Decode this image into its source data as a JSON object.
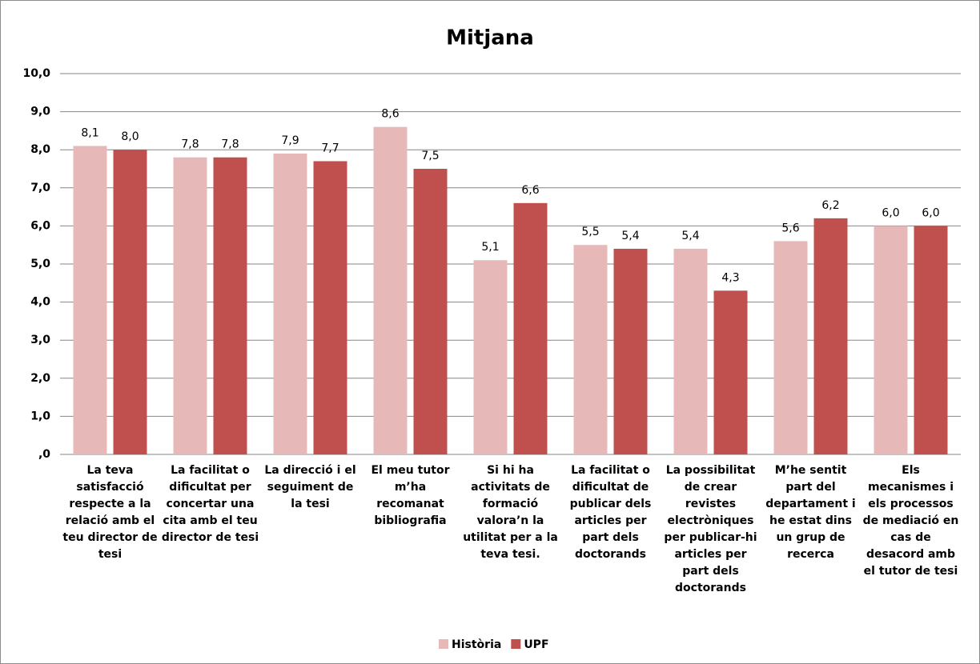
{
  "chart_data": {
    "type": "bar",
    "title": "Mitjana",
    "categories": [
      "La teva satisfacció respecte a la relació amb el teu director de tesi",
      "La facilitat o dificultat per concertar una cita amb el teu director de tesi",
      "La direcció i el seguiment de la tesi",
      "El meu tutor m’ha recomanat bibliografia",
      "Si hi ha activitats de formació valora’n la utilitat per a la teva tesi.",
      "La facilitat o dificultat de publicar dels articles per part dels doctorands",
      "La possibilitat de crear revistes electròniques per publicar-hi articles per part dels doctorands",
      "M’he sentit part del departament i he estat dins un grup de recerca",
      "Els mecanismes i els processos de mediació en cas de desacord amb el tutor de tesi"
    ],
    "series": [
      {
        "name": "Història",
        "color": "#e6b9b8",
        "values": [
          8.1,
          7.8,
          7.9,
          8.6,
          5.1,
          5.5,
          5.4,
          5.6,
          6.0
        ],
        "value_labels": [
          "8,1",
          "7,8",
          "7,9",
          "8,6",
          "5,1",
          "5,5",
          "5,4",
          "5,6",
          "6,0"
        ]
      },
      {
        "name": "UPF",
        "color": "#c0504d",
        "values": [
          8.0,
          7.8,
          7.7,
          7.5,
          6.6,
          5.4,
          4.3,
          6.2,
          6.0
        ],
        "value_labels": [
          "8,0",
          "7,8",
          "7,7",
          "7,5",
          "6,6",
          "5,4",
          "4,3",
          "6,2",
          "6,0"
        ]
      }
    ],
    "ylim": [
      0,
      10
    ],
    "yticks": [
      {
        "value": 0,
        "label": ",0"
      },
      {
        "value": 1,
        "label": "1,0"
      },
      {
        "value": 2,
        "label": "2,0"
      },
      {
        "value": 3,
        "label": "3,0"
      },
      {
        "value": 4,
        "label": "4,0"
      },
      {
        "value": 5,
        "label": "5,0"
      },
      {
        "value": 6,
        "label": "6,0"
      },
      {
        "value": 7,
        "label": "7,0"
      },
      {
        "value": 8,
        "label": "8,0"
      },
      {
        "value": 9,
        "label": "9,0"
      },
      {
        "value": 10,
        "label": "10,0"
      }
    ],
    "grid": true,
    "legend": "bottom"
  }
}
